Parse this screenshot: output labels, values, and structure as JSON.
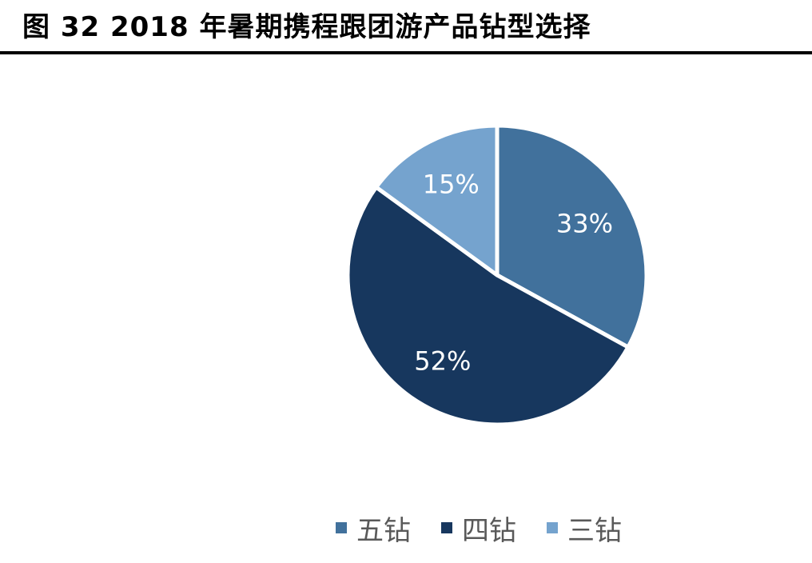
{
  "title": "图 32 2018 年暑期携程跟团游产品钻型选择",
  "chart_data": {
    "type": "pie",
    "title": "",
    "categories": [
      "五钻",
      "四钻",
      "三钻"
    ],
    "values": [
      33,
      52,
      15
    ],
    "data_labels": [
      "33%",
      "52%",
      "15%"
    ],
    "colors": [
      "#41719c",
      "#17375e",
      "#75a3ce"
    ],
    "start_angle_deg": 0,
    "direction": "clockwise",
    "legend_position": "bottom"
  }
}
